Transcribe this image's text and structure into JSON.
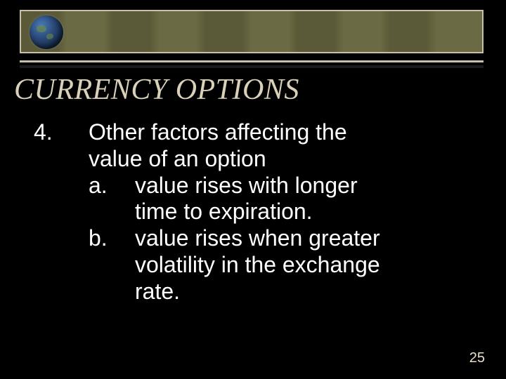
{
  "banner": {
    "border_color": "#c8c0a8",
    "bg_dark": "#5a5a38",
    "bg_light": "#6a6a44"
  },
  "globe_icon": "globe",
  "title": "CURRENCY OPTIONS",
  "list": {
    "number": "4.",
    "heading_line1": "Other factors affecting the",
    "heading_line2": "value of an option",
    "items": [
      {
        "label": "a.",
        "line1": "value rises with longer",
        "line2": "time to expiration."
      },
      {
        "label": "b.",
        "line1": "value rises when greater",
        "line2": "volatility in the exchange",
        "line3": "rate."
      }
    ]
  },
  "page_number": "25",
  "colors": {
    "background": "#000000",
    "title_color": "#d8d0b8",
    "text_color": "#ffffff",
    "pagenum_color": "#e8e0c8"
  },
  "typography": {
    "title_fontsize": 42,
    "title_style": "italic",
    "body_fontsize": 32,
    "pagenum_fontsize": 20
  }
}
